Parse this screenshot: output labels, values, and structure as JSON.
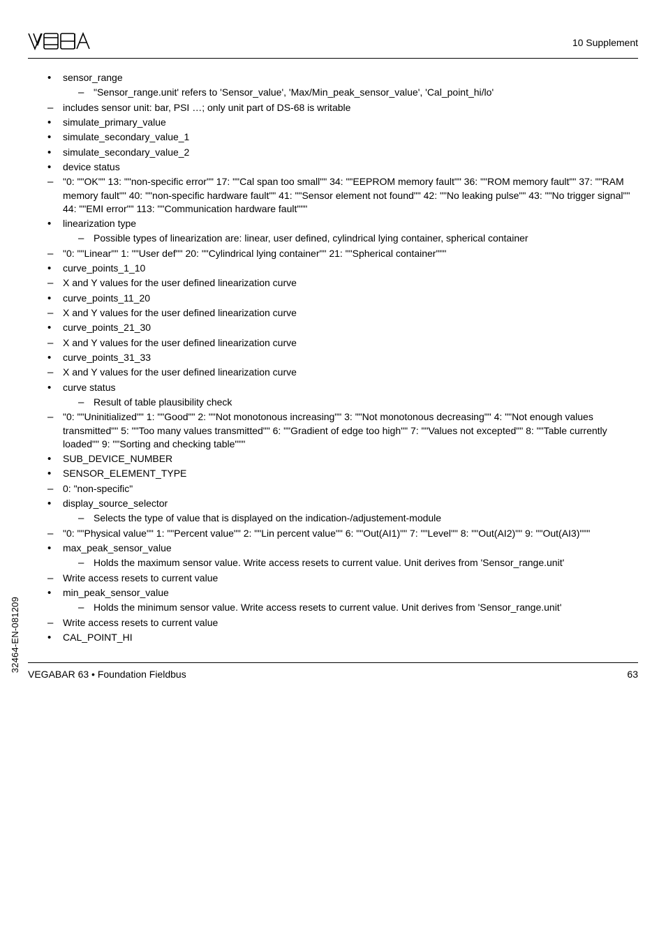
{
  "header": {
    "chapter": "10  Supplement"
  },
  "side_code": "32464-EN-081209",
  "footer": {
    "doc": "VEGABAR 63 • Foundation Fieldbus",
    "page": "63"
  },
  "items": [
    {
      "type": "bullet",
      "text": "sensor_range",
      "sub": [
        "\"Sensor_range.unit' refers to 'Sensor_value', 'Max/Min_peak_sensor_value', 'Cal_point_hi/lo'"
      ]
    },
    {
      "type": "dash",
      "text": "includes sensor unit: bar, PSI …; only unit part of DS-68 is writable"
    },
    {
      "type": "bullet",
      "text": "simulate_primary_value"
    },
    {
      "type": "bullet",
      "text": "simulate_secondary_value_1"
    },
    {
      "type": "bullet",
      "text": "simulate_secondary_value_2"
    },
    {
      "type": "bullet",
      "text": "device status"
    },
    {
      "type": "dash",
      "text": "\"0: \"\"OK\"\" 13: \"\"non-specific error\"\" 17: \"\"Cal span too small\"\" 34: \"\"EEPROM memory fault\"\" 36: \"\"ROM memory fault\"\" 37: \"\"RAM memory fault\"\" 40: \"\"non-specific hardware fault\"\" 41: \"\"Sensor element not found\"\" 42: \"\"No leaking pulse\"\" 43: \"\"No trigger signal\"\" 44: \"\"EMI error\"\" 113: \"\"Communication hardware fault\"\"\""
    },
    {
      "type": "bullet",
      "text": "linearization type",
      "sub": [
        "Possible types of linearization are: linear, user defined, cylindrical lying container, spherical container"
      ]
    },
    {
      "type": "dash",
      "text": "\"0: \"\"Linear\"\" 1: \"\"User def\"\" 20: \"\"Cylindrical lying container\"\" 21: \"\"Spherical container\"\"\""
    },
    {
      "type": "bullet",
      "text": "curve_points_1_10"
    },
    {
      "type": "dash",
      "text": "X and Y values for the user defined linearization curve"
    },
    {
      "type": "bullet",
      "text": "curve_points_11_20"
    },
    {
      "type": "dash",
      "text": "X and Y values for the user defined linearization curve"
    },
    {
      "type": "bullet",
      "text": "curve_points_21_30"
    },
    {
      "type": "dash",
      "text": "X and Y values for the user defined linearization curve"
    },
    {
      "type": "bullet",
      "text": "curve_points_31_33"
    },
    {
      "type": "dash",
      "text": "X and Y values for the user defined linearization curve"
    },
    {
      "type": "bullet",
      "text": "curve status",
      "sub": [
        "Result of table plausibility check"
      ]
    },
    {
      "type": "dash",
      "text": "\"0: \"\"Uninitialized\"\" 1: \"\"Good\"\" 2: \"\"Not monotonous increasing\"\" 3: \"\"Not monotonous decreasing\"\" 4: \"\"Not enough values transmitted\"\" 5: \"\"Too many values transmitted\"\" 6: \"\"Gradient of edge too high\"\" 7: \"\"Values not excepted\"\" 8: \"\"Table currently loaded\"\" 9: \"\"Sorting and checking table\"\"\""
    },
    {
      "type": "bullet",
      "text": "SUB_DEVICE_NUMBER"
    },
    {
      "type": "bullet",
      "text": "SENSOR_ELEMENT_TYPE"
    },
    {
      "type": "dash",
      "text": "0: \"non-specific\""
    },
    {
      "type": "bullet",
      "text": "display_source_selector",
      "sub": [
        "Selects the type of value that is displayed on the indication-/adjustement-module"
      ]
    },
    {
      "type": "dash",
      "text": "\"0: \"\"Physical value\"\" 1: \"\"Percent value\"\" 2: \"\"Lin percent value\"\" 6: \"\"Out(AI1)\"\" 7: \"\"Level\"\" 8: \"\"Out(AI2)\"\" 9: \"\"Out(AI3)\"\"\""
    },
    {
      "type": "bullet",
      "text": "max_peak_sensor_value",
      "sub": [
        "Holds the maximum sensor value. Write access resets to current value. Unit derives from 'Sensor_range.unit'"
      ]
    },
    {
      "type": "dash",
      "text": "Write access resets to current value"
    },
    {
      "type": "bullet",
      "text": "min_peak_sensor_value",
      "sub": [
        "Holds the minimum sensor value. Write access resets to current value. Unit derives from 'Sensor_range.unit'"
      ]
    },
    {
      "type": "dash",
      "text": "Write access resets to current value"
    },
    {
      "type": "bullet",
      "text": "CAL_POINT_HI"
    }
  ]
}
